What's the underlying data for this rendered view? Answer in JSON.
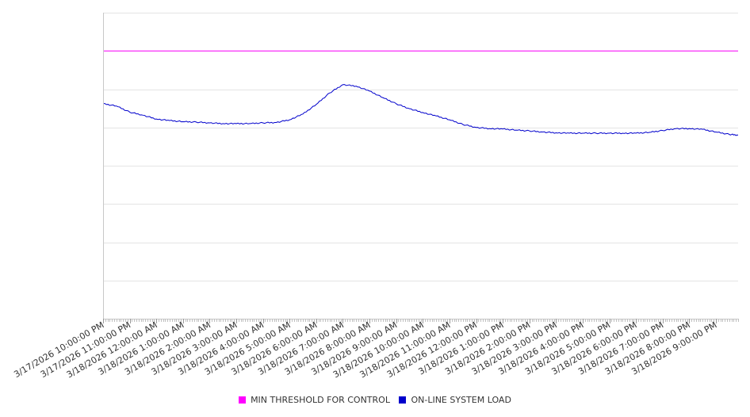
{
  "chart_data": {
    "type": "line",
    "title": "",
    "xlabel": "",
    "ylabel": "",
    "y_tick_labels_visible": false,
    "grid": "horizontal",
    "legend_position": "bottom",
    "x_tick_labels": [
      "3/17/2026 10:00:00 PM",
      "3/17/2026 11:00:00 PM",
      "3/18/2026 12:00:00 AM",
      "3/18/2026 1:00:00 AM",
      "3/18/2026 2:00:00 AM",
      "3/18/2026 3:00:00 AM",
      "3/18/2026 4:00:00 AM",
      "3/18/2026 5:00:00 AM",
      "3/18/2026 6:00:00 AM",
      "3/18/2026 7:00:00 AM",
      "3/18/2026 8:00:00 AM",
      "3/18/2026 9:00:00 AM",
      "3/18/2026 10:00:00 AM",
      "3/18/2026 11:00:00 AM",
      "3/18/2026 12:00:00 PM",
      "3/18/2026 1:00:00 PM",
      "3/18/2026 2:00:00 PM",
      "3/18/2026 3:00:00 PM",
      "3/18/2026 4:00:00 PM",
      "3/18/2026 5:00:00 PM",
      "3/18/2026 6:00:00 PM",
      "3/18/2026 7:00:00 PM",
      "3/18/2026 8:00:00 PM",
      "3/18/2026 9:00:00 PM"
    ],
    "xlim": [
      "3/17/2026 10:00:00 PM",
      "3/18/2026 9:50:00 PM"
    ],
    "ylim": [
      0,
      8
    ],
    "series": [
      {
        "name": "MIN THRESHOLD FOR CONTROL",
        "color": "#ff00ff",
        "x": [
          "3/17/2026 10:00:00 PM",
          "3/18/2026 9:50:00 PM"
        ],
        "values": [
          7.0,
          7.0
        ]
      },
      {
        "name": "ON-LINE SYSTEM LOAD",
        "color": "#0000cc",
        "x": [
          "3/17/2026 10:00:00 PM",
          "3/17/2026 10:30:00 PM",
          "3/17/2026 11:00:00 PM",
          "3/17/2026 11:30:00 PM",
          "3/18/2026 12:00:00 AM",
          "3/18/2026 12:30:00 AM",
          "3/18/2026 1:00:00 AM",
          "3/18/2026 1:30:00 AM",
          "3/18/2026 2:00:00 AM",
          "3/18/2026 2:30:00 AM",
          "3/18/2026 3:00:00 AM",
          "3/18/2026 3:30:00 AM",
          "3/18/2026 4:00:00 AM",
          "3/18/2026 4:30:00 AM",
          "3/18/2026 5:00:00 AM",
          "3/18/2026 5:30:00 AM",
          "3/18/2026 6:00:00 AM",
          "3/18/2026 6:30:00 AM",
          "3/18/2026 7:00:00 AM",
          "3/18/2026 7:30:00 AM",
          "3/18/2026 8:00:00 AM",
          "3/18/2026 8:30:00 AM",
          "3/18/2026 9:00:00 AM",
          "3/18/2026 9:30:00 AM",
          "3/18/2026 10:00:00 AM",
          "3/18/2026 10:30:00 AM",
          "3/18/2026 11:00:00 AM",
          "3/18/2026 11:30:00 AM",
          "3/18/2026 12:00:00 PM",
          "3/18/2026 12:30:00 PM",
          "3/18/2026 1:00:00 PM",
          "3/18/2026 1:30:00 PM",
          "3/18/2026 2:00:00 PM",
          "3/18/2026 2:30:00 PM",
          "3/18/2026 3:00:00 PM",
          "3/18/2026 3:30:00 PM",
          "3/18/2026 4:00:00 PM",
          "3/18/2026 4:30:00 PM",
          "3/18/2026 5:00:00 PM",
          "3/18/2026 5:30:00 PM",
          "3/18/2026 6:00:00 PM",
          "3/18/2026 6:30:00 PM",
          "3/18/2026 7:00:00 PM",
          "3/18/2026 7:30:00 PM",
          "3/18/2026 8:00:00 PM",
          "3/18/2026 8:30:00 PM",
          "3/18/2026 9:00:00 PM",
          "3/18/2026 9:30:00 PM",
          "3/18/2026 9:50:00 PM"
        ],
        "values": [
          5.62,
          5.56,
          5.4,
          5.32,
          5.22,
          5.18,
          5.15,
          5.14,
          5.12,
          5.1,
          5.1,
          5.1,
          5.12,
          5.13,
          5.2,
          5.35,
          5.6,
          5.9,
          6.12,
          6.08,
          5.95,
          5.78,
          5.62,
          5.49,
          5.39,
          5.3,
          5.2,
          5.08,
          5.0,
          4.97,
          4.96,
          4.93,
          4.91,
          4.88,
          4.86,
          4.85,
          4.85,
          4.85,
          4.85,
          4.85,
          4.85,
          4.87,
          4.92,
          4.97,
          4.97,
          4.95,
          4.88,
          4.82,
          4.8
        ]
      }
    ]
  }
}
